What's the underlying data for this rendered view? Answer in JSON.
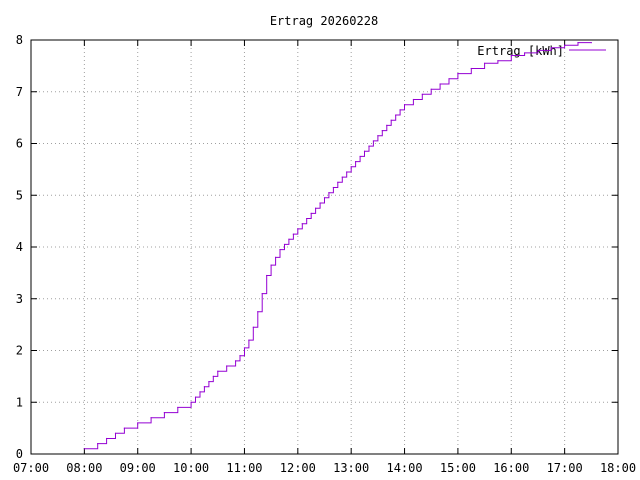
{
  "chart_data": {
    "type": "line",
    "title": "Ertrag 20260228",
    "xlabel": "",
    "ylabel": "",
    "x_ticks": [
      "07:00",
      "08:00",
      "09:00",
      "10:00",
      "11:00",
      "12:00",
      "13:00",
      "14:00",
      "15:00",
      "16:00",
      "17:00",
      "18:00"
    ],
    "y_ticks": [
      "0",
      "1",
      "2",
      "3",
      "4",
      "5",
      "6",
      "7",
      "8"
    ],
    "xlim": [
      "07:00",
      "18:00"
    ],
    "ylim": [
      0,
      8
    ],
    "grid": true,
    "legend_position": "top-right",
    "step": true,
    "series": [
      {
        "name": "Ertrag [kWh]",
        "color": "#9400d3",
        "x": [
          "08:00",
          "08:15",
          "08:25",
          "08:35",
          "08:45",
          "09:00",
          "09:15",
          "09:30",
          "09:45",
          "10:00",
          "10:05",
          "10:10",
          "10:15",
          "10:20",
          "10:25",
          "10:30",
          "10:40",
          "10:50",
          "10:55",
          "11:00",
          "11:05",
          "11:10",
          "11:15",
          "11:20",
          "11:25",
          "11:30",
          "11:35",
          "11:40",
          "11:45",
          "11:50",
          "11:55",
          "12:00",
          "12:05",
          "12:10",
          "12:15",
          "12:20",
          "12:25",
          "12:30",
          "12:35",
          "12:40",
          "12:45",
          "12:50",
          "12:55",
          "13:00",
          "13:05",
          "13:10",
          "13:15",
          "13:20",
          "13:25",
          "13:30",
          "13:35",
          "13:40",
          "13:45",
          "13:50",
          "13:55",
          "14:00",
          "14:10",
          "14:20",
          "14:30",
          "14:40",
          "14:50",
          "15:00",
          "15:15",
          "15:30",
          "15:45",
          "16:00",
          "16:15",
          "16:30",
          "16:45",
          "17:00",
          "17:15",
          "17:30"
        ],
        "y": [
          0.1,
          0.2,
          0.3,
          0.4,
          0.5,
          0.6,
          0.7,
          0.8,
          0.9,
          1.0,
          1.1,
          1.2,
          1.3,
          1.4,
          1.5,
          1.6,
          1.7,
          1.8,
          1.9,
          2.05,
          2.2,
          2.45,
          2.75,
          3.1,
          3.45,
          3.65,
          3.8,
          3.95,
          4.05,
          4.15,
          4.25,
          4.35,
          4.45,
          4.55,
          4.65,
          4.75,
          4.85,
          4.95,
          5.05,
          5.15,
          5.25,
          5.35,
          5.45,
          5.55,
          5.65,
          5.75,
          5.85,
          5.95,
          6.05,
          6.15,
          6.25,
          6.35,
          6.45,
          6.55,
          6.65,
          6.75,
          6.85,
          6.95,
          7.05,
          7.15,
          7.25,
          7.35,
          7.45,
          7.55,
          7.6,
          7.7,
          7.75,
          7.8,
          7.85,
          7.9,
          7.95,
          7.95
        ]
      }
    ]
  }
}
